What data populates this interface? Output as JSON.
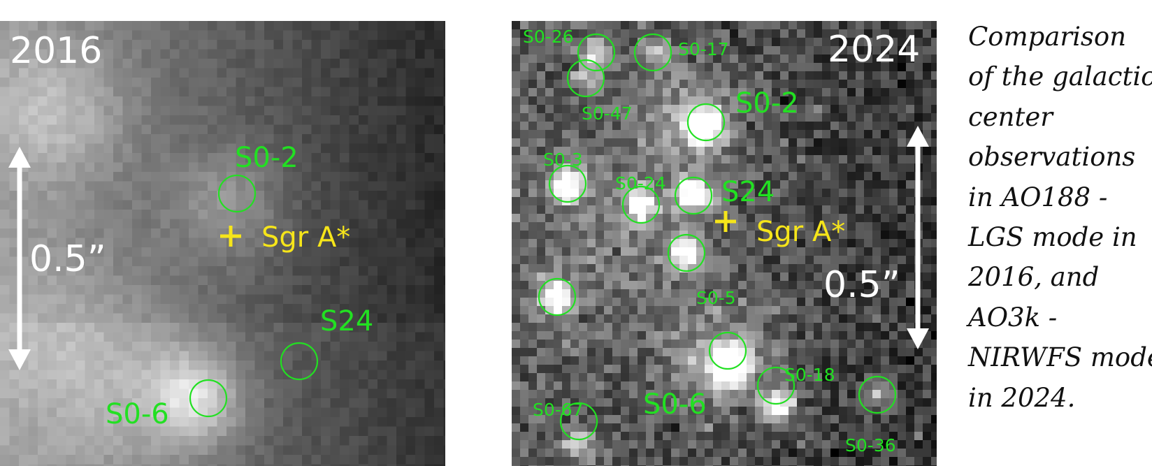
{
  "panels": {
    "left": {
      "year": "2016",
      "scale": "0.5”",
      "sgr_label": "Sgr A*",
      "stars": {
        "s02": "S0-2",
        "s24": "S24",
        "s06": "S0-6"
      }
    },
    "right": {
      "year": "2024",
      "scale": "0.5”",
      "sgr_label": "Sgr A*",
      "stars": {
        "s026": "S0-26",
        "s017": "S0-17",
        "s047": "S0-47",
        "s02": "S0-2",
        "s03": "S0-3",
        "s024": "S0-24",
        "s24": "S24",
        "s05": "S0-5",
        "s018": "S0-18",
        "s06": "S0-6",
        "s067": "S0-67",
        "s036": "S0-36"
      }
    }
  },
  "caption": {
    "lines": [
      "Comparison",
      "of the galactic",
      "center",
      "observations",
      "in AO188 -",
      "LGS mode in",
      "2016, and",
      "AO3k -",
      "NIRWFS mode",
      "in 2024."
    ]
  },
  "colors": {
    "circle": "#22e022",
    "label": "#22e022",
    "sgr": "#f6e51a",
    "arrow": "#ffffff"
  }
}
